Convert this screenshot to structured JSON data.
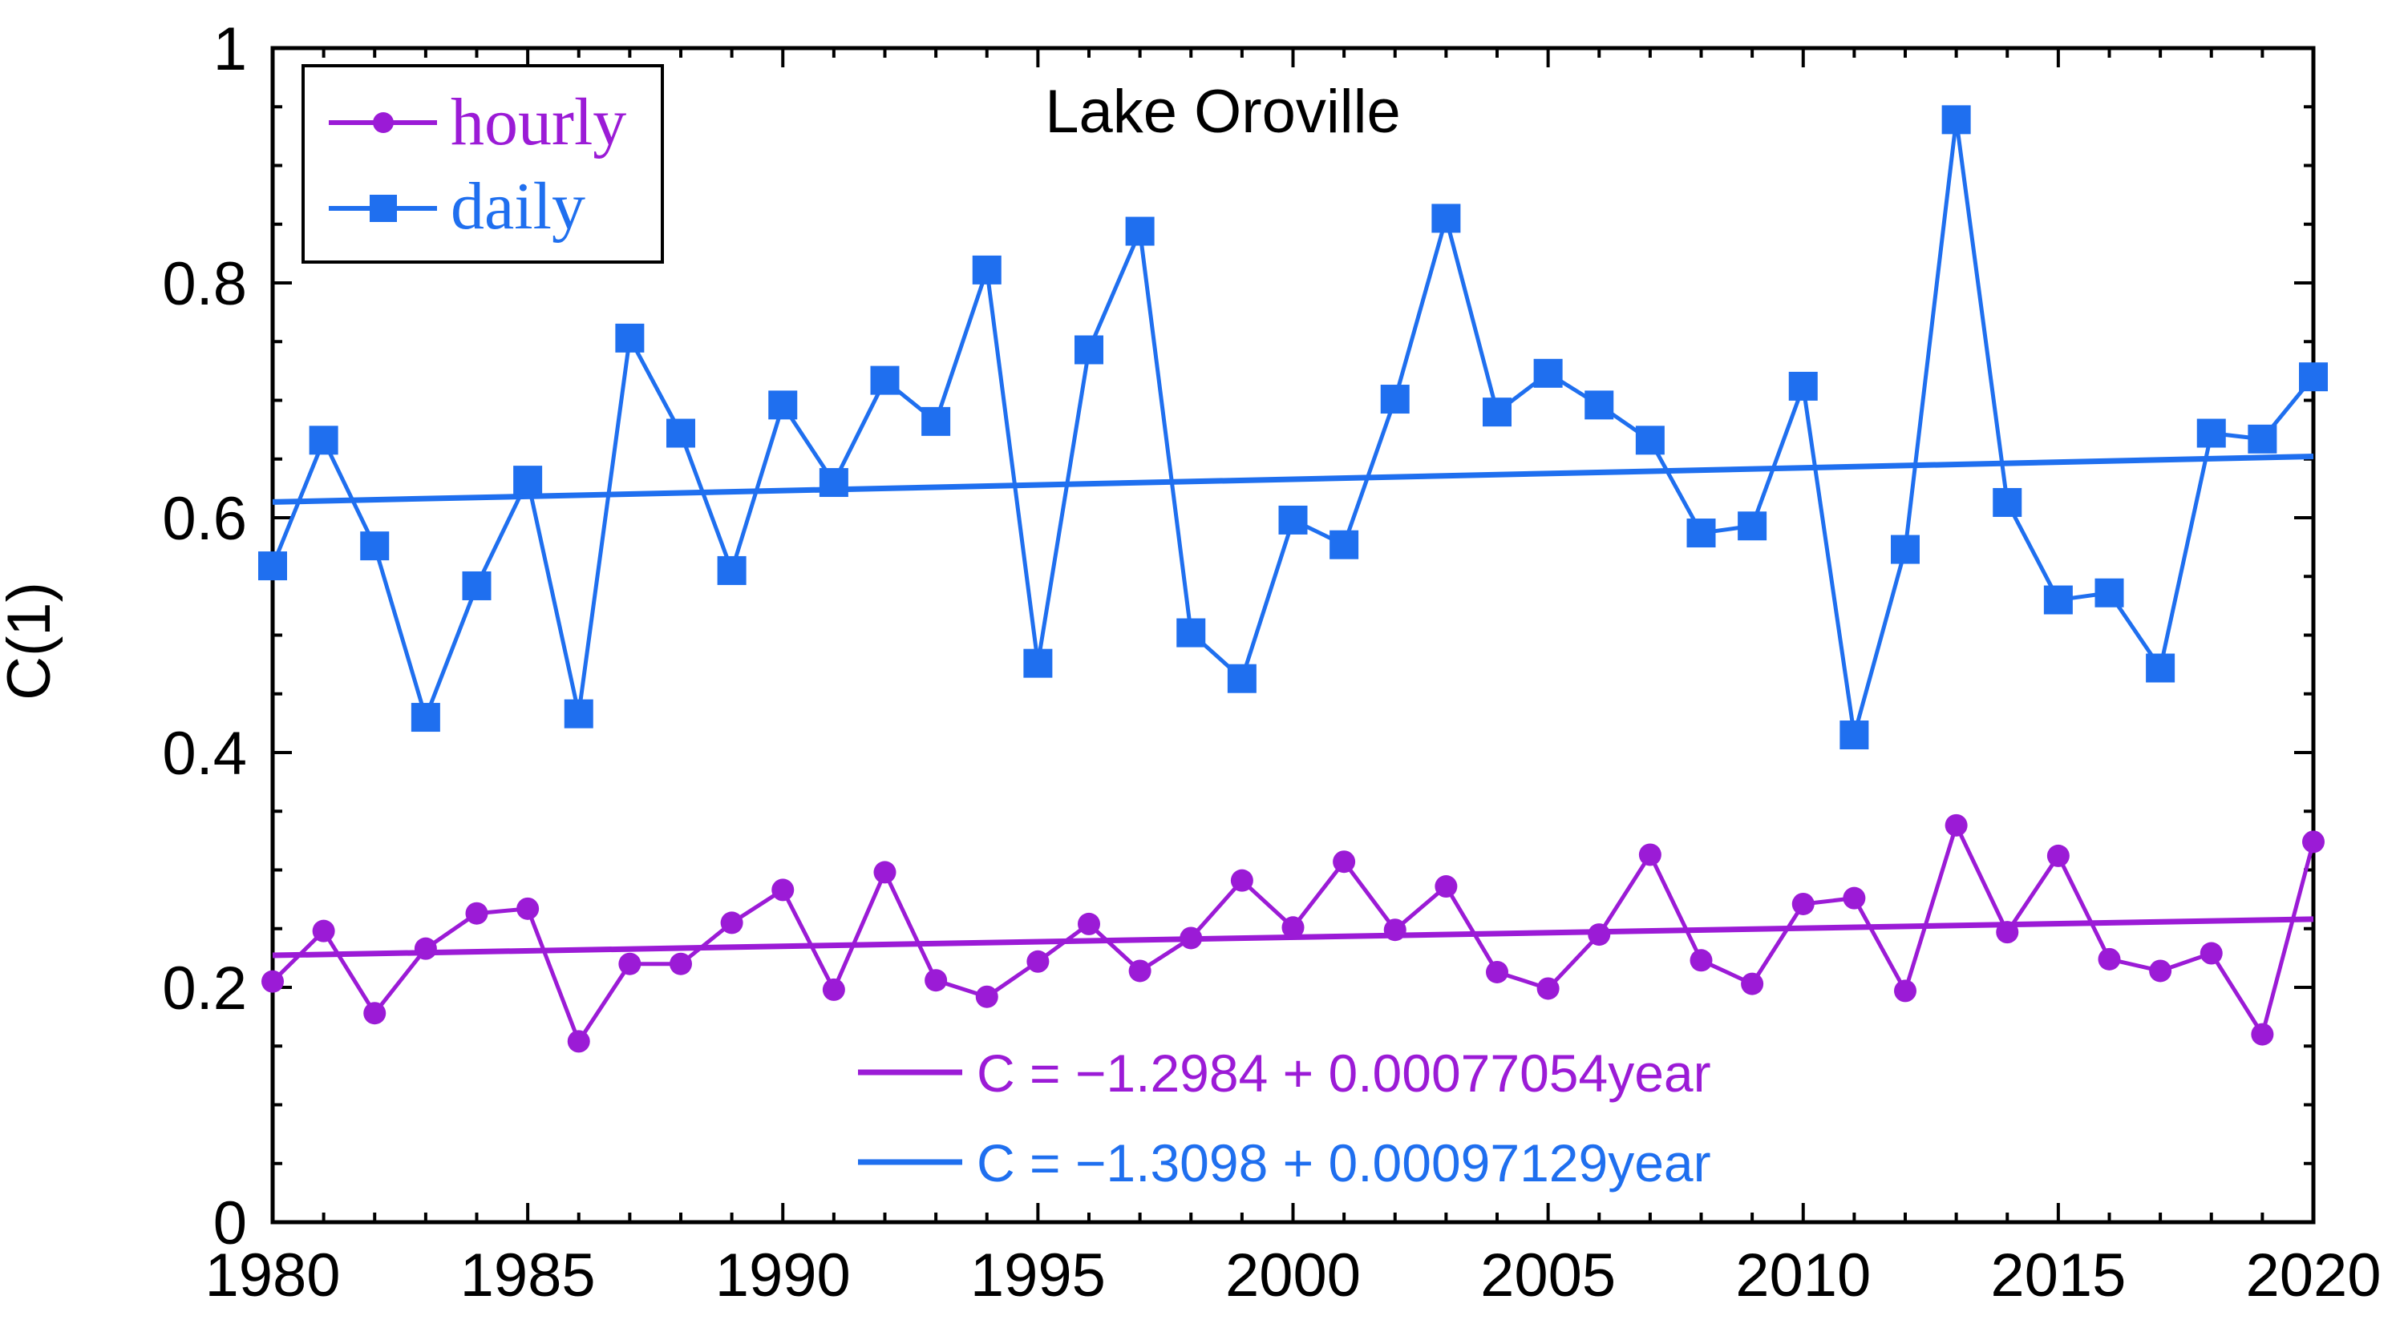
{
  "chart_data": {
    "type": "line",
    "title": "Lake Oroville",
    "xlabel": "",
    "ylabel": "C(1)",
    "xlim": [
      1980,
      2020
    ],
    "ylim": [
      0,
      1
    ],
    "xticks": [
      1980,
      1985,
      1990,
      1995,
      2000,
      2005,
      2010,
      2015,
      2020
    ],
    "xtick_labels": [
      "1980",
      "1985",
      "1990",
      "1995",
      "2000",
      "2005",
      "2010",
      "2015",
      "2020"
    ],
    "yticks": [
      0,
      0.2,
      0.4,
      0.6,
      0.8,
      1
    ],
    "ytick_labels": [
      "0",
      "0.2",
      "0.4",
      "0.6",
      "0.8",
      "1"
    ],
    "x": [
      1980,
      1981,
      1982,
      1983,
      1984,
      1985,
      1986,
      1987,
      1988,
      1989,
      1990,
      1991,
      1992,
      1993,
      1994,
      1995,
      1996,
      1997,
      1998,
      1999,
      2000,
      2001,
      2002,
      2003,
      2004,
      2005,
      2006,
      2007,
      2008,
      2009,
      2010,
      2011,
      2012,
      2013,
      2014,
      2015,
      2016,
      2017,
      2018,
      2019,
      2020
    ],
    "series": [
      {
        "name": "hourly",
        "color": "#9B1BD6",
        "marker": "circle",
        "values": [
          0.205,
          0.248,
          0.178,
          0.233,
          0.263,
          0.267,
          0.154,
          0.22,
          0.22,
          0.255,
          0.283,
          0.198,
          0.298,
          0.206,
          0.192,
          0.222,
          0.254,
          0.214,
          0.242,
          0.291,
          0.251,
          0.307,
          0.249,
          0.286,
          0.213,
          0.199,
          0.245,
          0.313,
          0.223,
          0.203,
          0.271,
          0.276,
          0.197,
          0.338,
          0.247,
          0.312,
          0.224,
          0.214,
          0.229,
          0.16,
          0.324
        ]
      },
      {
        "name": "daily",
        "color": "#1F6FEF",
        "marker": "square",
        "values": [
          0.559,
          0.666,
          0.576,
          0.43,
          0.542,
          0.632,
          0.433,
          0.753,
          0.672,
          0.555,
          0.696,
          0.63,
          0.717,
          0.682,
          0.811,
          0.476,
          0.743,
          0.844,
          0.502,
          0.463,
          0.598,
          0.577,
          0.701,
          0.855,
          0.69,
          0.723,
          0.696,
          0.666,
          0.587,
          0.593,
          0.712,
          0.415,
          0.573,
          0.939,
          0.613,
          0.53,
          0.536,
          0.472,
          0.672,
          0.667,
          0.72
        ]
      }
    ],
    "fits": [
      {
        "name": "hourly",
        "color": "#9B1BD6",
        "intercept": -1.2984,
        "slope": 0.00077054,
        "label": "C = −1.2984 + 0.00077054year"
      },
      {
        "name": "daily",
        "color": "#1F6FEF",
        "intercept": -1.3098,
        "slope": 0.00097129,
        "label": "C = −1.3098 + 0.00097129year"
      }
    ],
    "legend": {
      "position": "top-left",
      "entries": [
        "hourly",
        "daily"
      ]
    },
    "grid": false
  }
}
